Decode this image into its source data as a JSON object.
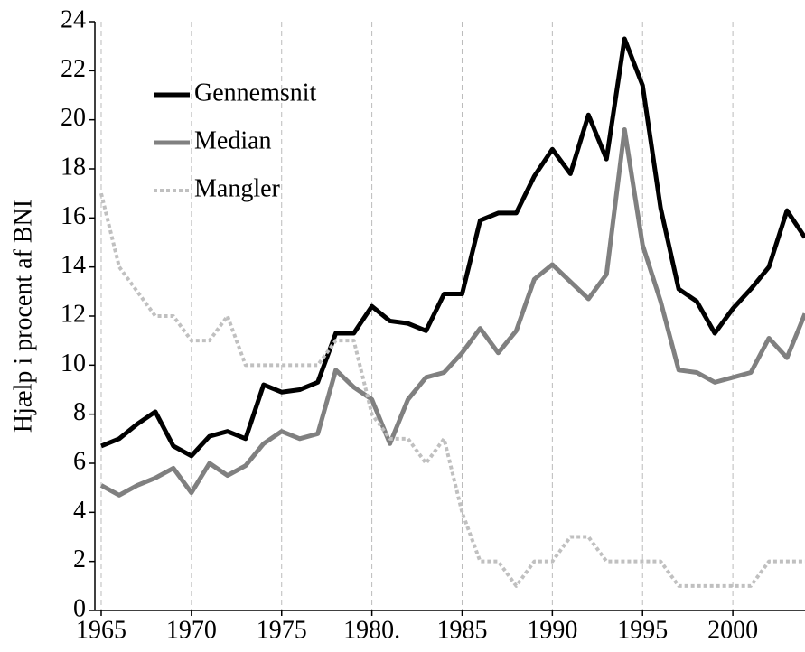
{
  "chart_data": {
    "type": "line",
    "y_label": "Hjælp i procent af BNI",
    "x": [
      1965,
      1966,
      1967,
      1968,
      1969,
      1970,
      1971,
      1972,
      1973,
      1974,
      1975,
      1976,
      1977,
      1978,
      1979,
      1980,
      1981,
      1982,
      1983,
      1984,
      1985,
      1986,
      1987,
      1988,
      1989,
      1990,
      1991,
      1992,
      1993,
      1994,
      1995,
      1996,
      1997,
      1998,
      1999,
      2000,
      2001,
      2002,
      2003,
      2004
    ],
    "series": [
      {
        "name": "Gennemsnit",
        "color": "#000000",
        "dashed": false,
        "values": [
          6.7,
          7.0,
          7.6,
          8.1,
          6.7,
          6.3,
          7.1,
          7.3,
          7.0,
          9.2,
          8.9,
          9.0,
          9.3,
          11.3,
          11.3,
          12.4,
          11.8,
          11.7,
          11.4,
          12.9,
          12.9,
          15.9,
          16.2,
          16.2,
          17.7,
          18.8,
          17.8,
          20.2,
          18.4,
          23.3,
          21.4,
          16.4,
          13.1,
          12.6,
          11.3,
          12.3,
          13.1,
          14.0,
          16.3,
          15.2
        ]
      },
      {
        "name": "Median",
        "color": "#808080",
        "dashed": false,
        "values": [
          5.1,
          4.7,
          5.1,
          5.4,
          5.8,
          4.8,
          6.0,
          5.5,
          5.9,
          6.8,
          7.3,
          7.0,
          7.2,
          9.8,
          9.1,
          8.6,
          6.8,
          8.6,
          9.5,
          9.7,
          10.5,
          11.5,
          10.5,
          11.4,
          13.5,
          14.1,
          13.4,
          12.7,
          13.7,
          19.6,
          14.9,
          12.6,
          9.8,
          9.7,
          9.3,
          9.5,
          9.7,
          11.1,
          10.3,
          12.1
        ]
      },
      {
        "name": "Mangler",
        "color": "#c0c0c0",
        "dashed": true,
        "values": [
          17,
          14,
          13,
          12,
          12,
          11,
          11,
          12,
          10,
          10,
          10,
          10,
          10,
          11,
          11,
          8,
          7,
          7,
          6,
          7,
          4,
          2,
          2,
          1,
          2,
          2,
          3,
          3,
          2,
          2,
          2,
          2,
          1,
          1,
          1,
          1,
          1,
          2,
          2,
          2
        ]
      }
    ],
    "xlim": [
      1964.65,
      2004
    ],
    "xticks": [
      1965,
      1970,
      1975,
      {
        "value": 1980,
        "label": "1980."
      },
      1985,
      1990,
      1995,
      2000
    ],
    "ylim": [
      0,
      24
    ],
    "yticks": [
      0,
      2,
      4,
      6,
      8,
      10,
      12,
      14,
      16,
      18,
      20,
      22,
      24
    ],
    "grid": "x",
    "legend": "upper left"
  }
}
